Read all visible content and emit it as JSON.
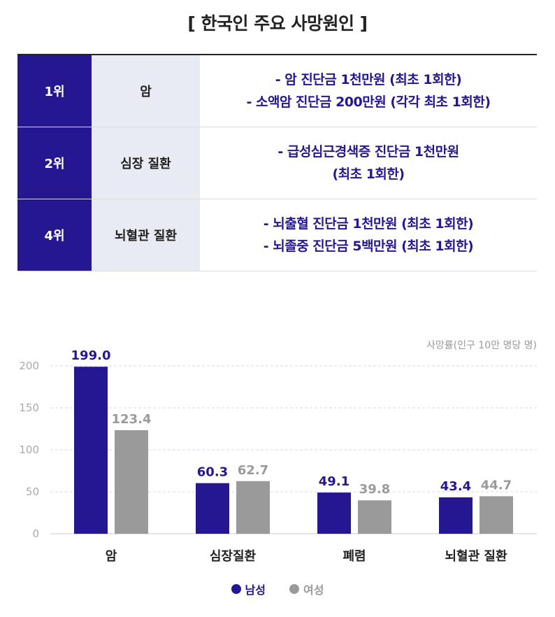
{
  "title": "[ 한국인 주요 사망원인 ]",
  "table": {
    "rows": [
      {
        "rank": "1위",
        "cause": "암",
        "lines": [
          "- 암 진단금 1천만원 (최초 1회한)",
          "- 소액암 진단금 200만원 (각각 최초 1회한)"
        ]
      },
      {
        "rank": "2위",
        "cause": "심장 질환",
        "lines": [
          "- 급성심근경색증 진단금 1천만원",
          "(최초 1회한)"
        ]
      },
      {
        "rank": "4위",
        "cause": "뇌혈관 질환",
        "lines": [
          "- 뇌출혈 진단금 1천만원 (최초 1회한)",
          "- 뇌졸중 진단금 5백만원 (최초 1회한)"
        ]
      }
    ]
  },
  "colors": {
    "male": "#24178f",
    "female": "#9a9a9a",
    "accent": "#24178f",
    "grid": "#d9d9d9"
  },
  "chart_data": {
    "type": "bar",
    "ylabel": "사망률(인구 10만 명당 명)",
    "ylim": [
      0,
      200
    ],
    "yticks": [
      0,
      50,
      100,
      150,
      200
    ],
    "categories": [
      "암",
      "심장질환",
      "폐렴",
      "뇌혈관 질환"
    ],
    "series": [
      {
        "name": "남성",
        "values": [
          199.0,
          60.3,
          49.1,
          43.4
        ],
        "labels": [
          "199.0",
          "60.3",
          "49.1",
          "43.4"
        ]
      },
      {
        "name": "여성",
        "values": [
          123.4,
          62.7,
          39.8,
          44.7
        ],
        "labels": [
          "123.4",
          "62.7",
          "39.8",
          "44.7"
        ]
      }
    ],
    "grid": true,
    "legend": "bottom"
  }
}
